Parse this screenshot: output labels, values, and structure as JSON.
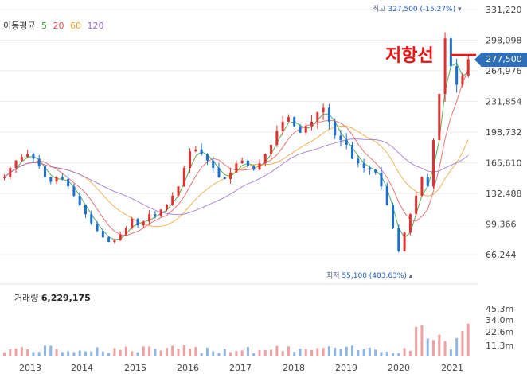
{
  "legend": {
    "label": "이동평균",
    "periods": [
      "5",
      "20",
      "60",
      "120"
    ],
    "colors": [
      "#2a9d2a",
      "#e05555",
      "#f0a030",
      "#9a6bd0"
    ]
  },
  "annotations": {
    "high_label": "최고",
    "high_value": "327,500 (-15.27%)",
    "low_label": "최저",
    "low_value": "55,100 (403.63%)",
    "resistance": "저항선",
    "current_price": "277,500"
  },
  "volume": {
    "label": "거래량",
    "value": "6,229,175",
    "ticks": [
      "45.3m",
      "34.0m",
      "22.6m",
      "11.3m"
    ]
  },
  "colors": {
    "up": "#e03030",
    "down": "#1a6fd0",
    "up_vol": "#f0a0a0",
    "down_vol": "#8fb5e6"
  },
  "chart_data": {
    "type": "candlestick",
    "x_ticks": [
      "2013",
      "2014",
      "2015",
      "2016",
      "2017",
      "2018",
      "2019",
      "2020",
      "2021"
    ],
    "y_ticks": [
      "331,220",
      "298,098",
      "264,976",
      "231,854",
      "198,732",
      "165,610",
      "132,488",
      "99,366",
      "66,244"
    ],
    "ylim": [
      49000,
      338000
    ],
    "price": [
      150000,
      160000,
      168000,
      172000,
      175000,
      170000,
      162000,
      150000,
      145000,
      150000,
      148000,
      140000,
      130000,
      120000,
      110000,
      100000,
      92000,
      85000,
      80000,
      82000,
      88000,
      95000,
      105000,
      98000,
      102000,
      110000,
      108000,
      115000,
      120000,
      130000,
      140000,
      160000,
      178000,
      180000,
      175000,
      168000,
      160000,
      150000,
      148000,
      155000,
      165000,
      168000,
      162000,
      158000,
      165000,
      175000,
      185000,
      200000,
      210000,
      215000,
      205000,
      198000,
      205000,
      210000,
      220000,
      225000,
      210000,
      195000,
      190000,
      185000,
      170000,
      165000,
      160000,
      158000,
      155000,
      140000,
      120000,
      95000,
      70000,
      90000,
      110000,
      130000,
      150000,
      140000,
      190000,
      240000,
      300000,
      270000,
      250000,
      260000,
      277500
    ],
    "ma_paths_note": ""
  }
}
